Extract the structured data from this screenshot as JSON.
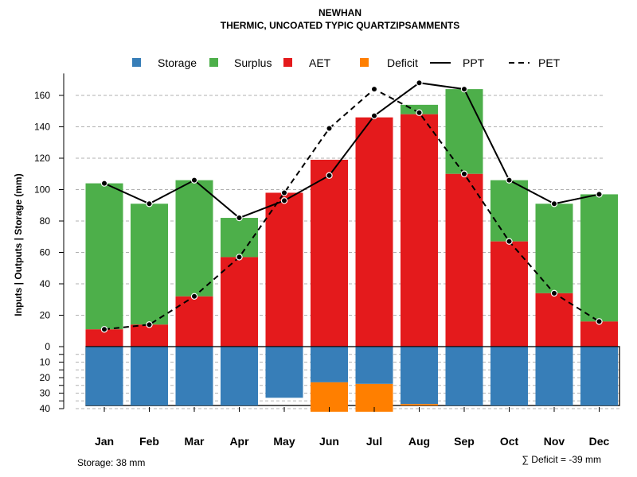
{
  "chart_data": {
    "type": "bar",
    "title": "NEWHAN",
    "subtitle": "THERMIC, UNCOATED TYPIC QUARTZIPSAMMENTS",
    "ylabel": "Inputs | Outputs | Storage    (mm)",
    "categories": [
      "Jan",
      "Feb",
      "Mar",
      "Apr",
      "May",
      "Jun",
      "Jul",
      "Aug",
      "Sep",
      "Oct",
      "Nov",
      "Dec"
    ],
    "ylim_upper": [
      0,
      170
    ],
    "ylim_lower": [
      0,
      40
    ],
    "upper_ticks": [
      "0",
      "20",
      "40",
      "60",
      "80",
      "100",
      "120",
      "140",
      "160"
    ],
    "upper_tick_values": [
      0,
      20,
      40,
      60,
      80,
      100,
      120,
      140,
      160
    ],
    "lower_ticks": [
      "10",
      "20",
      "30",
      "40"
    ],
    "lower_tick_values": [
      10,
      20,
      30,
      40
    ],
    "legend": {
      "storage": "Storage",
      "surplus": "Surplus",
      "aet": "AET",
      "deficit": "Deficit",
      "ppt": "PPT",
      "pet": "PET"
    },
    "colors": {
      "storage": "#377eb8",
      "surplus": "#4daf4a",
      "aet": "#e41a1c",
      "deficit": "#ff7f00",
      "grid": "#b0b0b0"
    },
    "series": [
      {
        "name": "AET",
        "values": [
          11,
          14,
          32,
          57,
          98,
          119,
          146,
          148,
          110,
          67,
          34,
          16
        ]
      },
      {
        "name": "Surplus",
        "values": [
          93,
          77,
          74,
          25,
          0,
          0,
          0,
          6,
          54,
          39,
          57,
          81
        ]
      },
      {
        "name": "PPT",
        "values": [
          104,
          91,
          106,
          82,
          93,
          109,
          147,
          168,
          164,
          106,
          91,
          97
        ]
      },
      {
        "name": "PET",
        "values": [
          11,
          14,
          32,
          57,
          98,
          139,
          164,
          149,
          110,
          67,
          34,
          16
        ]
      },
      {
        "name": "Storage",
        "values": [
          38,
          38,
          38,
          38,
          33,
          23,
          24,
          37,
          38,
          38,
          38,
          38
        ]
      },
      {
        "name": "Deficit",
        "values": [
          0,
          0,
          0,
          0,
          0,
          19,
          18,
          1,
          0,
          0,
          0,
          0
        ]
      }
    ],
    "footer_left": "Storage: 38 mm",
    "footer_right": "∑ Deficit = -39 mm"
  }
}
